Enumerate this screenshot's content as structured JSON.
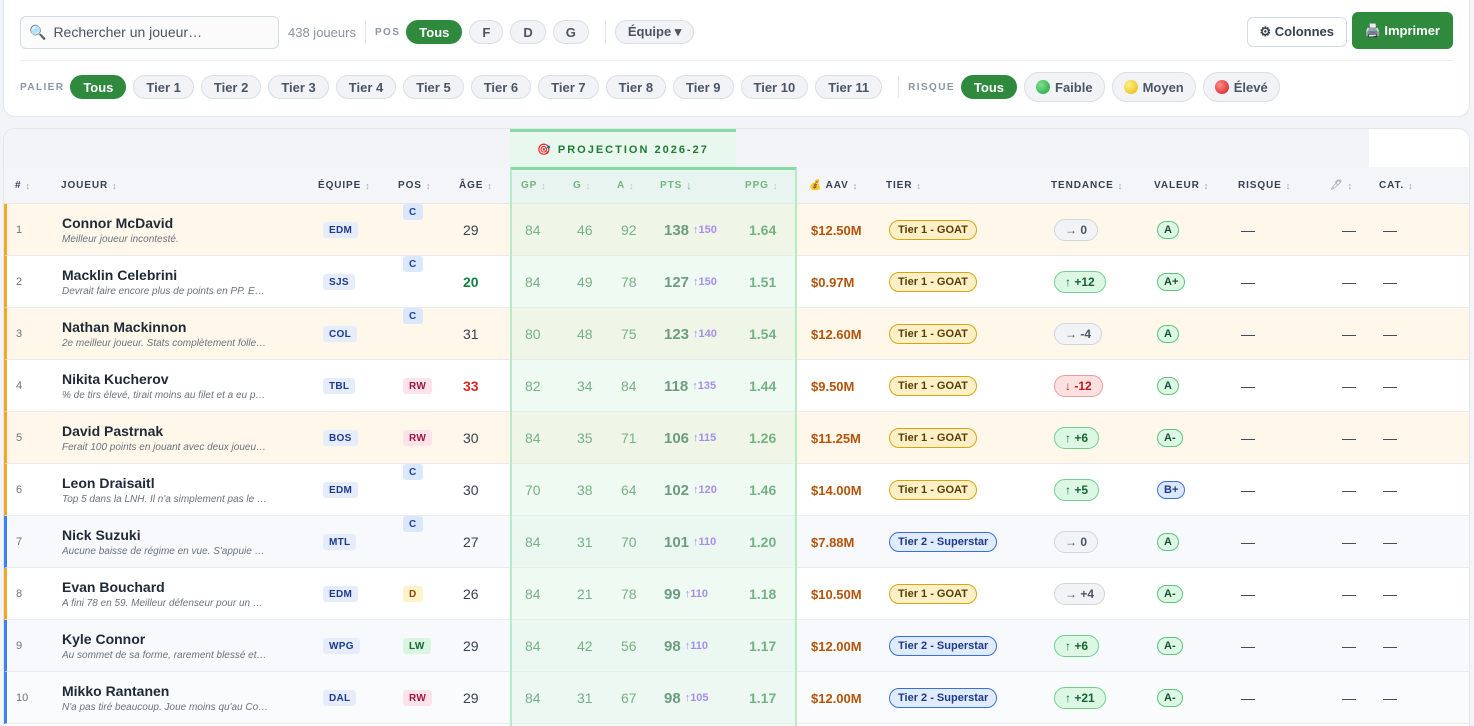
{
  "toolbar": {
    "search_placeholder": "Rechercher un joueur…",
    "player_count": "438 joueurs",
    "pos_label": "POS",
    "pos_filters": [
      "Tous",
      "F",
      "D",
      "G"
    ],
    "team_filter": "Équipe ▾",
    "columns_button": "⚙ Colonnes",
    "print_button": "🖨️ Imprimer",
    "tier_label": "PALIER",
    "tier_filters": [
      "Tous",
      "Tier 1",
      "Tier 2",
      "Tier 3",
      "Tier 4",
      "Tier 5",
      "Tier 6",
      "Tier 7",
      "Tier 8",
      "Tier 9",
      "Tier 10",
      "Tier 11"
    ],
    "risk_label": "RISQUE",
    "risk_filters": [
      "Tous",
      "Faible",
      "Moyen",
      "Élevé"
    ]
  },
  "projection_header": "🎯 PROJECTION 2026-27",
  "columns": {
    "rank": "#",
    "player": "JOUEUR",
    "team": "ÉQUIPE",
    "pos": "POS",
    "age": "ÂGE",
    "gp": "GP",
    "g": "G",
    "a": "A",
    "pts": "PTS",
    "ppg": "PPG",
    "aav": "💰 AAV",
    "tier": "TIER",
    "trend": "TENDANCE",
    "value": "VALEUR",
    "risk": "RISQUE",
    "note": "🖊",
    "cat": "CAT.",
    "sort_icon": "↕",
    "sort_active_icon": "↓"
  },
  "rows": [
    {
      "rank": "1",
      "name": "Connor McDavid",
      "note": "Meilleur joueur incontesté.",
      "team": "EDM",
      "pos": "C",
      "age": "29",
      "gp": "84",
      "g": "46",
      "a": "92",
      "pts": "138",
      "pts_up": "↑150",
      "ppg": "1.64",
      "aav": "$12.50M",
      "tier": "Tier 1 - GOAT",
      "trend": "→ 0",
      "value": "A",
      "risk": "—",
      "pen": "—",
      "cat": "—"
    },
    {
      "rank": "2",
      "name": "Macklin Celebrini",
      "note": "Devrait faire encore plus de points en PP. E…",
      "team": "SJS",
      "pos": "C",
      "age": "20",
      "gp": "84",
      "g": "49",
      "a": "78",
      "pts": "127",
      "pts_up": "↑150",
      "ppg": "1.51",
      "aav": "$0.97M",
      "tier": "Tier 1 - GOAT",
      "trend": "↑ +12",
      "value": "A+",
      "risk": "—",
      "pen": "—",
      "cat": "—"
    },
    {
      "rank": "3",
      "name": "Nathan Mackinnon",
      "note": "2e meilleur joueur. Stats complètement folle…",
      "team": "COL",
      "pos": "C",
      "age": "31",
      "gp": "80",
      "g": "48",
      "a": "75",
      "pts": "123",
      "pts_up": "↑140",
      "ppg": "1.54",
      "aav": "$12.60M",
      "tier": "Tier 1 - GOAT",
      "trend": "→ -4",
      "value": "A",
      "risk": "—",
      "pen": "—",
      "cat": "—"
    },
    {
      "rank": "4",
      "name": "Nikita Kucherov",
      "note": "% de tirs élevé, tirait moins au filet et a eu p…",
      "team": "TBL",
      "pos": "RW",
      "age": "33",
      "gp": "82",
      "g": "34",
      "a": "84",
      "pts": "118",
      "pts_up": "↑135",
      "ppg": "1.44",
      "aav": "$9.50M",
      "tier": "Tier 1 - GOAT",
      "trend": "↓ -12",
      "value": "A",
      "risk": "—",
      "pen": "—",
      "cat": "—"
    },
    {
      "rank": "5",
      "name": "David Pastrnak",
      "note": "Ferait 100 points en jouant avec deux joueu…",
      "team": "BOS",
      "pos": "RW",
      "age": "30",
      "gp": "84",
      "g": "35",
      "a": "71",
      "pts": "106",
      "pts_up": "↑115",
      "ppg": "1.26",
      "aav": "$11.25M",
      "tier": "Tier 1 - GOAT",
      "trend": "↑ +6",
      "value": "A-",
      "risk": "—",
      "pen": "—",
      "cat": "—"
    },
    {
      "rank": "6",
      "name": "Leon Draisaitl",
      "note": "Top 5 dans la LNH. Il n'a simplement pas le …",
      "team": "EDM",
      "pos": "C",
      "age": "30",
      "gp": "70",
      "g": "38",
      "a": "64",
      "pts": "102",
      "pts_up": "↑120",
      "ppg": "1.46",
      "aav": "$14.00M",
      "tier": "Tier 1 - GOAT",
      "trend": "↑ +5",
      "value": "B+",
      "risk": "—",
      "pen": "—",
      "cat": "—"
    },
    {
      "rank": "7",
      "name": "Nick Suzuki",
      "note": "Aucune baisse de régime en vue. S'appuie …",
      "team": "MTL",
      "pos": "C",
      "age": "27",
      "gp": "84",
      "g": "31",
      "a": "70",
      "pts": "101",
      "pts_up": "↑110",
      "ppg": "1.20",
      "aav": "$7.88M",
      "tier": "Tier 2 - Superstar",
      "trend": "→ 0",
      "value": "A",
      "risk": "—",
      "pen": "—",
      "cat": "—"
    },
    {
      "rank": "8",
      "name": "Evan Bouchard",
      "note": "A fini 78 en 59. Meilleur défenseur pour un …",
      "team": "EDM",
      "pos": "D",
      "age": "26",
      "gp": "84",
      "g": "21",
      "a": "78",
      "pts": "99",
      "pts_up": "↑110",
      "ppg": "1.18",
      "aav": "$10.50M",
      "tier": "Tier 1 - GOAT",
      "trend": "→ +4",
      "value": "A-",
      "risk": "—",
      "pen": "—",
      "cat": "—"
    },
    {
      "rank": "9",
      "name": "Kyle Connor",
      "note": "Au sommet de sa forme, rarement blessé et…",
      "team": "WPG",
      "pos": "LW",
      "age": "29",
      "gp": "84",
      "g": "42",
      "a": "56",
      "pts": "98",
      "pts_up": "↑110",
      "ppg": "1.17",
      "aav": "$12.00M",
      "tier": "Tier 2 - Superstar",
      "trend": "↑ +6",
      "value": "A-",
      "risk": "—",
      "pen": "—",
      "cat": "—"
    },
    {
      "rank": "10",
      "name": "Mikko Rantanen",
      "note": "N'a pas tiré beaucoup. Joue moins qu'au Co…",
      "team": "DAL",
      "pos": "RW",
      "age": "29",
      "gp": "84",
      "g": "31",
      "a": "67",
      "pts": "98",
      "pts_up": "↑105",
      "ppg": "1.17",
      "aav": "$12.00M",
      "tier": "Tier 2 - Superstar",
      "trend": "↑ +21",
      "value": "A-",
      "risk": "—",
      "pen": "—",
      "cat": "—"
    }
  ],
  "colors": {
    "accent": "#2f8a3e",
    "risk_low": "#22c55e",
    "risk_mid": "#facc15",
    "risk_high": "#ef4444"
  }
}
